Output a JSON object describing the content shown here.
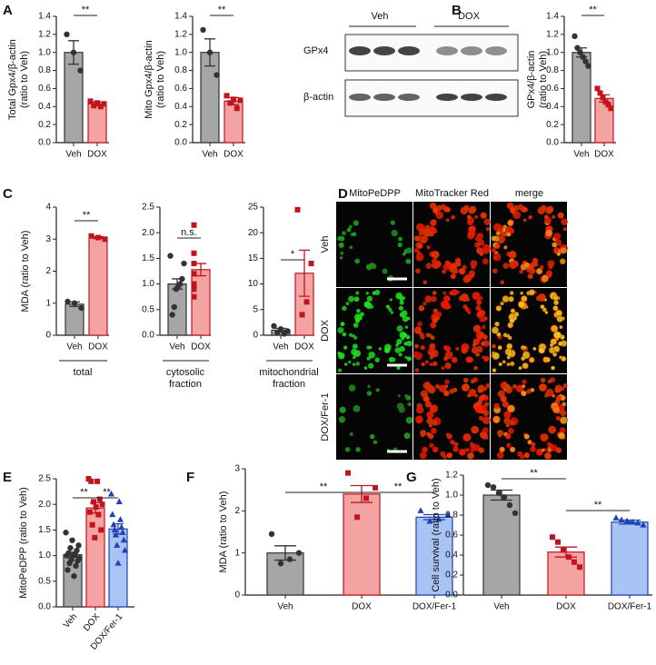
{
  "panels": [
    "A",
    "B",
    "C",
    "D",
    "E",
    "F",
    "G"
  ],
  "blot": {
    "groups": [
      "Veh",
      "DOX"
    ],
    "rows": [
      "GPx4",
      "β-actin"
    ]
  },
  "micrographs": {
    "columns": [
      "MitoPeDPP",
      "MitoTracker Red",
      "merge"
    ],
    "rows": [
      "Veh",
      "DOX",
      "DOX/Fer-1"
    ]
  },
  "chart_data": [
    {
      "type": "bar",
      "ylabel": [
        "Total Gpx4/β-actin",
        "(ratio to Veh)"
      ],
      "categories": [
        "Veh",
        "DOX"
      ],
      "values": [
        1.0,
        0.43
      ],
      "errors": [
        0.13,
        0.02
      ],
      "points": [
        [
          1.2,
          1.0,
          0.8
        ],
        [
          0.46,
          0.44,
          0.43,
          0.41,
          0.4
        ]
      ],
      "colors": [
        "#a6a6a6",
        "#f4a3a3"
      ],
      "edgecolors": [
        "#333333",
        "#c0141e"
      ],
      "markers": [
        "circle",
        "square"
      ],
      "ylim": [
        0,
        1.4
      ],
      "yticks": [
        {
          "value": 0,
          "label": "0.0"
        },
        0.2,
        0.4,
        0.6,
        0.8,
        {
          "value": 1,
          "label": "1.0"
        },
        1.2,
        1.4
      ],
      "annotations": [
        {
          "text": "**",
          "between": [
            "Veh",
            "DOX"
          ]
        }
      ]
    },
    {
      "type": "bar",
      "ylabel": [
        "Mito Gpx4/β-actin",
        "(ratio to Veh)"
      ],
      "categories": [
        "Veh",
        "DOX"
      ],
      "values": [
        1.0,
        0.46
      ],
      "errors": [
        0.15,
        0.04
      ],
      "points": [
        [
          1.25,
          1.0,
          0.75
        ],
        [
          0.52,
          0.48,
          0.47,
          0.44,
          0.38
        ]
      ],
      "colors": [
        "#a6a6a6",
        "#f4a3a3"
      ],
      "edgecolors": [
        "#333333",
        "#c0141e"
      ],
      "markers": [
        "circle",
        "square"
      ],
      "ylim": [
        0,
        1.4
      ],
      "yticks": [
        {
          "value": 0,
          "label": "0.0"
        },
        0.2,
        0.4,
        0.6,
        0.8,
        {
          "value": 1,
          "label": "1.0"
        },
        1.2,
        1.4
      ],
      "annotations": [
        {
          "text": "**",
          "between": [
            "Veh",
            "DOX"
          ]
        }
      ]
    },
    {
      "type": "bar",
      "ylabel": [
        "GPx4/β-actin",
        "(ratio to Veh)"
      ],
      "categories": [
        "Veh",
        "DOX"
      ],
      "values": [
        1.0,
        0.49
      ],
      "errors": [
        0.05,
        0.04
      ],
      "points": [
        [
          1.18,
          1.05,
          1.0,
          0.95,
          0.9,
          0.85
        ],
        [
          0.6,
          0.55,
          0.5,
          0.45,
          0.42,
          0.38
        ]
      ],
      "colors": [
        "#a6a6a6",
        "#f4a3a3"
      ],
      "edgecolors": [
        "#333333",
        "#c0141e"
      ],
      "markers": [
        "circle",
        "square"
      ],
      "ylim": [
        0,
        1.4
      ],
      "yticks": [
        {
          "value": 0,
          "label": "0.0"
        },
        0.2,
        0.4,
        0.6,
        0.8,
        {
          "value": 1,
          "label": "1.0"
        },
        1.2,
        1.4
      ],
      "annotations": [
        {
          "text": "**",
          "between": [
            "Veh",
            "DOX"
          ]
        }
      ]
    },
    {
      "type": "bar",
      "ylabel": [
        "MDA (ratio to Veh)"
      ],
      "xgroup": [
        "total"
      ],
      "categories": [
        "Veh",
        "DOX"
      ],
      "values": [
        0.97,
        3.05
      ],
      "errors": [
        0.07,
        0.03
      ],
      "points": [
        [
          1.05,
          1.0,
          0.85
        ],
        [
          3.1,
          3.05,
          3.0
        ]
      ],
      "colors": [
        "#a6a6a6",
        "#f4a3a3"
      ],
      "edgecolors": [
        "#333333",
        "#c0141e"
      ],
      "markers": [
        "circle",
        "square"
      ],
      "ylim": [
        0,
        4
      ],
      "yticks": [
        0,
        1,
        2,
        3,
        4
      ],
      "annotations": [
        {
          "text": "**",
          "between": [
            "Veh",
            "DOX"
          ]
        }
      ]
    },
    {
      "type": "bar",
      "xgroup": [
        "cytosolic",
        "fraction"
      ],
      "categories": [
        "Veh",
        "DOX"
      ],
      "values": [
        1.0,
        1.28
      ],
      "errors": [
        0.1,
        0.12
      ],
      "points": [
        [
          1.55,
          1.4,
          1.1,
          1.0,
          0.95,
          0.9,
          0.55,
          0.4
        ],
        [
          2.15,
          1.6,
          1.4,
          1.2,
          1.0,
          0.9,
          0.75
        ]
      ],
      "colors": [
        "#a6a6a6",
        "#f4a3a3"
      ],
      "edgecolors": [
        "#333333",
        "#c0141e"
      ],
      "markers": [
        "circle",
        "square"
      ],
      "ylim": [
        0,
        2.5
      ],
      "yticks": [
        {
          "value": 0,
          "label": "0.0"
        },
        0.5,
        {
          "value": 1,
          "label": "1.0"
        },
        1.5,
        {
          "value": 2,
          "label": "2.0"
        },
        2.5
      ],
      "annotations": [
        {
          "text": "n.s.",
          "between": [
            "Veh",
            "DOX"
          ]
        }
      ]
    },
    {
      "type": "bar",
      "xgroup": [
        "mitochondrial",
        "fraction"
      ],
      "categories": [
        "Veh",
        "DOX"
      ],
      "values": [
        1.0,
        12.1
      ],
      "errors": [
        0.35,
        4.5
      ],
      "points": [
        [
          1.8,
          1.2,
          0.8,
          0.5,
          0.3
        ],
        [
          24.5,
          14,
          6.5,
          4
        ]
      ],
      "colors": [
        "#a6a6a6",
        "#f4a3a3"
      ],
      "edgecolors": [
        "#333333",
        "#c0141e"
      ],
      "markers": [
        "circle",
        "square"
      ],
      "ylim": [
        0,
        25
      ],
      "yticks": [
        0,
        5,
        10,
        15,
        20,
        25
      ],
      "annotations": [
        {
          "text": "*",
          "between": [
            "Veh",
            "DOX"
          ]
        }
      ]
    },
    {
      "type": "bar",
      "ylabel": [
        "MitoPeDPP (ratio to Veh)"
      ],
      "categories": [
        "Veh",
        "DOX",
        "DOX/Fer-1"
      ],
      "values": [
        1.02,
        1.93,
        1.52
      ],
      "errors": [
        0.05,
        0.1,
        0.1
      ],
      "points": [
        [
          1.45,
          1.3,
          1.2,
          1.15,
          1.1,
          1.05,
          1.02,
          1.0,
          1.0,
          0.95,
          0.92,
          0.9,
          0.85,
          0.8,
          0.72,
          0.6
        ],
        [
          2.5,
          2.45,
          2.45,
          2.1,
          2.05,
          2.0,
          1.95,
          1.85,
          1.8,
          1.6,
          1.5,
          1.35
        ],
        [
          2.2,
          2.05,
          1.8,
          1.7,
          1.6,
          1.55,
          1.5,
          1.45,
          1.4,
          1.3,
          1.2,
          1.1,
          0.85
        ]
      ],
      "colors": [
        "#a6a6a6",
        "#f4a3a3",
        "#a8c4f5"
      ],
      "edgecolors": [
        "#333333",
        "#c0141e",
        "#2141b8"
      ],
      "markers": [
        "circle",
        "square",
        "triangle"
      ],
      "ylim": [
        0,
        2.5
      ],
      "yticks": [
        {
          "value": 0,
          "label": "0.0"
        },
        0.5,
        {
          "value": 1,
          "label": "1.0"
        },
        1.5,
        {
          "value": 2,
          "label": "2.0"
        },
        2.5
      ],
      "annotations": [
        {
          "text": "**",
          "between": [
            "Veh",
            "DOX"
          ]
        },
        {
          "text": "**",
          "between": [
            "DOX",
            "DOX/Fer-1"
          ]
        }
      ]
    },
    {
      "type": "bar",
      "ylabel": [
        "MDA (ratio to Veh)"
      ],
      "categories": [
        "Veh",
        "DOX",
        "DOX/Fer-1"
      ],
      "values": [
        1.0,
        2.4,
        1.85
      ],
      "errors": [
        0.17,
        0.2,
        0.06
      ],
      "points": [
        [
          1.45,
          1.0,
          0.85,
          0.75
        ],
        [
          2.9,
          2.55,
          2.3,
          1.85
        ],
        [
          2.0,
          1.9,
          1.8,
          1.75
        ]
      ],
      "colors": [
        "#a6a6a6",
        "#f4a3a3",
        "#a8c4f5"
      ],
      "edgecolors": [
        "#333333",
        "#c0141e",
        "#2141b8"
      ],
      "markers": [
        "circle",
        "square",
        "triangle"
      ],
      "ylim": [
        0,
        3
      ],
      "yticks": [
        0,
        1,
        2,
        3
      ],
      "annotations": [
        {
          "text": "**",
          "between": [
            "Veh",
            "DOX"
          ]
        },
        {
          "text": "**",
          "between": [
            "DOX",
            "DOX/Fer-1"
          ]
        }
      ]
    },
    {
      "type": "bar",
      "ylabel": [
        "Cell survival (ratio to Veh)"
      ],
      "categories": [
        "Veh",
        "DOX",
        "DOX/Fer-1"
      ],
      "values": [
        1.0,
        0.43,
        0.73
      ],
      "errors": [
        0.05,
        0.05,
        0.02
      ],
      "points": [
        [
          1.1,
          1.08,
          1.02,
          0.98,
          0.9,
          0.82
        ],
        [
          0.58,
          0.53,
          0.45,
          0.38,
          0.33,
          0.28
        ],
        [
          0.77,
          0.75,
          0.74,
          0.73,
          0.72,
          0.7
        ]
      ],
      "colors": [
        "#a6a6a6",
        "#f4a3a3",
        "#a8c4f5"
      ],
      "edgecolors": [
        "#333333",
        "#c0141e",
        "#2141b8"
      ],
      "markers": [
        "circle",
        "square",
        "triangle"
      ],
      "ylim": [
        0,
        1.2
      ],
      "yticks": [
        {
          "value": 0,
          "label": "0.0"
        },
        0.2,
        0.4,
        0.6,
        0.8,
        {
          "value": 1,
          "label": "1.0"
        },
        1.2
      ],
      "annotations": [
        {
          "text": "**",
          "between": [
            "Veh",
            "DOX"
          ]
        },
        {
          "text": "**",
          "between": [
            "DOX",
            "DOX/Fer-1"
          ]
        }
      ]
    }
  ]
}
